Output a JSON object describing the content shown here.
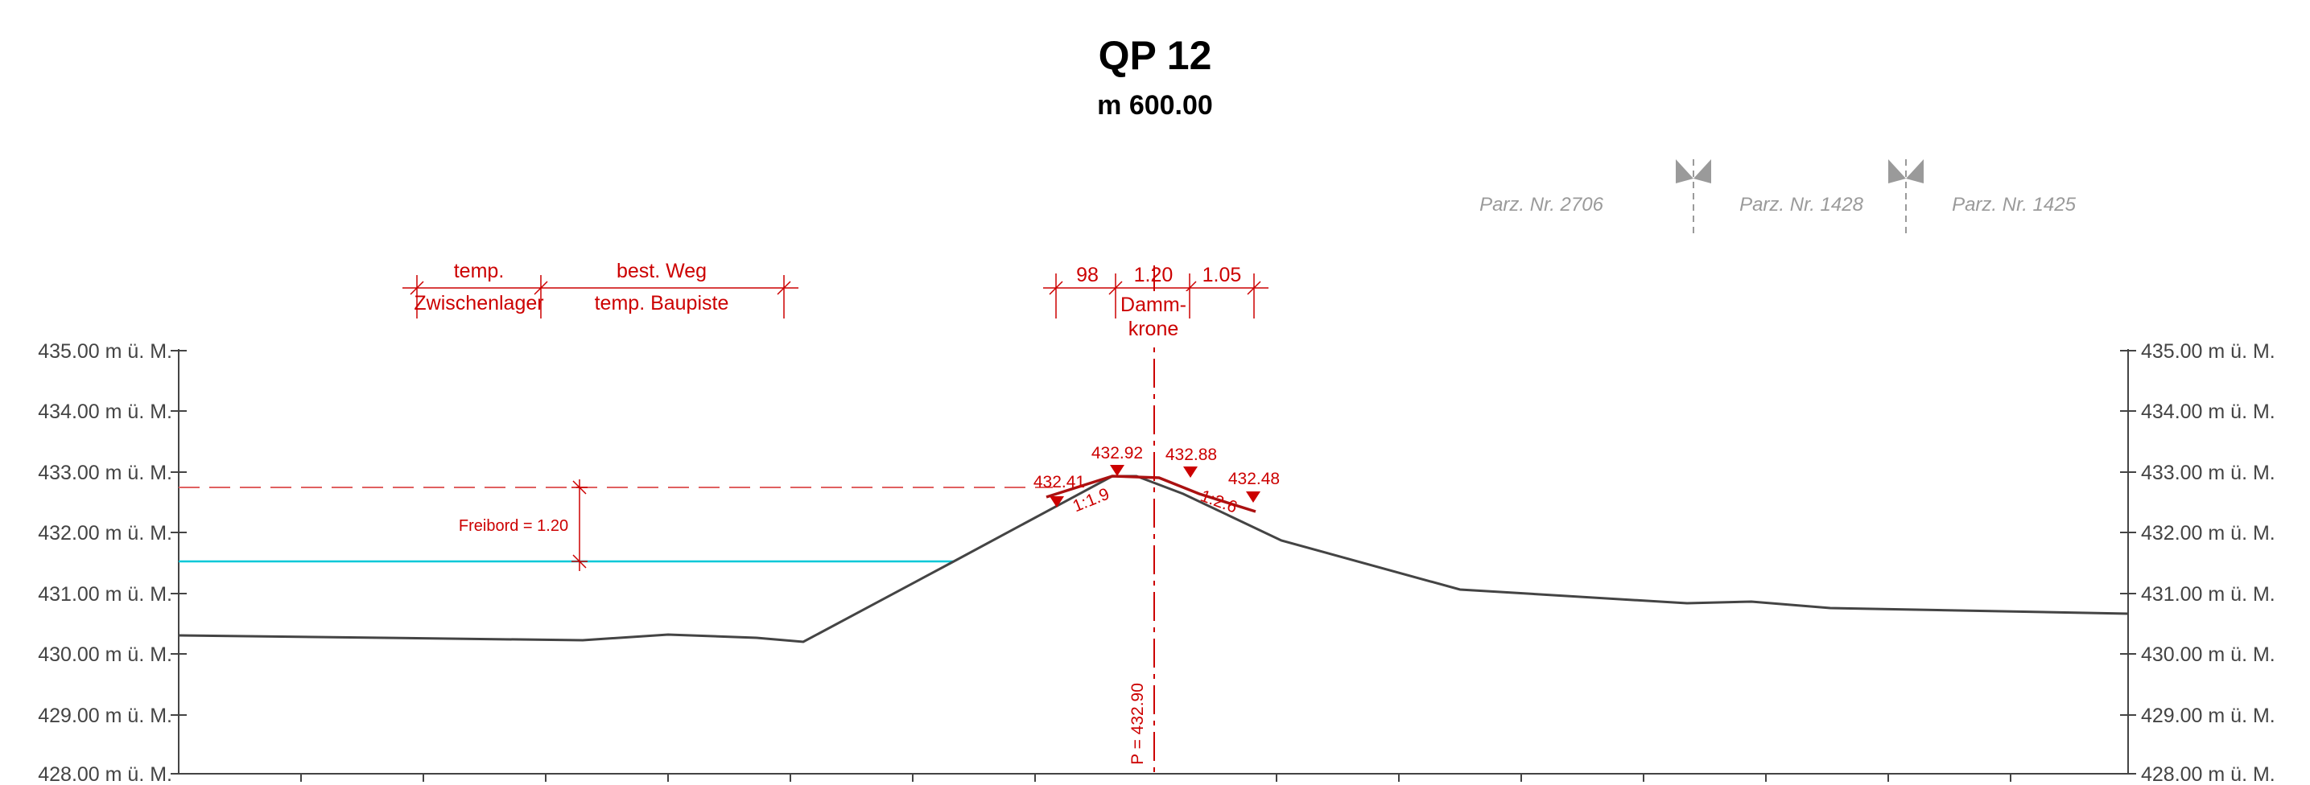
{
  "title": "QP 12",
  "subtitle": "m 600.00",
  "axis": {
    "unit_suffix": " m ü. M.",
    "y_min": 428.0,
    "y_max": 435.0,
    "ticks": [
      "435.00 m ü. M.",
      "434.00 m ü. M.",
      "433.00 m ü. M.",
      "432.00 m ü. M.",
      "431.00 m ü. M.",
      "430.00 m ü. M.",
      "429.00 m ü. M.",
      "428.00 m ü. M."
    ]
  },
  "parcels": [
    "Parz. Nr. 2706",
    "Parz. Nr. 1428",
    "Parz. Nr. 1425"
  ],
  "zones_left": {
    "zone1_top": "temp.",
    "zone1_bottom": "Zwischenlager",
    "zone2_top": "best. Weg",
    "zone2_bottom": "temp. Baupiste"
  },
  "crest_dims": {
    "left": "98",
    "center": "1.20",
    "right": "1.05",
    "label_line1": "Damm-",
    "label_line2": "krone"
  },
  "elevations": {
    "e1": "432.41",
    "e2": "432.92",
    "e3": "432.88",
    "e4": "432.48"
  },
  "slopes": {
    "left": "1:1.9",
    "right": "1:2.6"
  },
  "freeboard": "Freibord = 1.20",
  "axis_label": "P = 432.90",
  "colors": {
    "terrain": "#444444",
    "design": "#aa1111",
    "water": "#00c8d8",
    "annotation": "#cc0000",
    "parcel": "#9a9a9a"
  }
}
